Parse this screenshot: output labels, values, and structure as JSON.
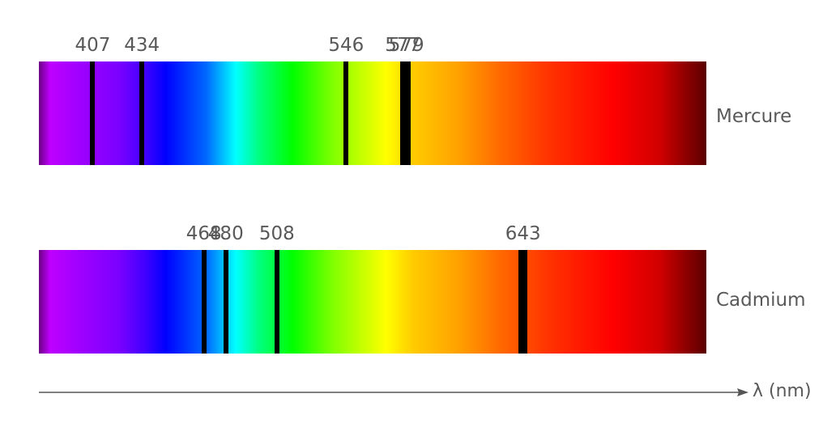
{
  "spectra": [
    {
      "name": "Mercure",
      "lines": [
        {
          "label": "407",
          "wavelength": 407
        },
        {
          "label": "434",
          "wavelength": 434
        },
        {
          "label": "546",
          "wavelength": 546
        },
        {
          "label": "577",
          "wavelength": 577
        },
        {
          "label": "579",
          "wavelength": 579
        }
      ]
    },
    {
      "name": "Cadmium",
      "lines": [
        {
          "label": "468",
          "wavelength": 468
        },
        {
          "label": "480",
          "wavelength": 480
        },
        {
          "label": "508",
          "wavelength": 508
        },
        {
          "label": "643",
          "wavelength": 643
        }
      ]
    }
  ],
  "axis": {
    "title": "λ (nm)",
    "colors": {
      "line": "#555555",
      "spectral_line": "#000000"
    }
  }
}
